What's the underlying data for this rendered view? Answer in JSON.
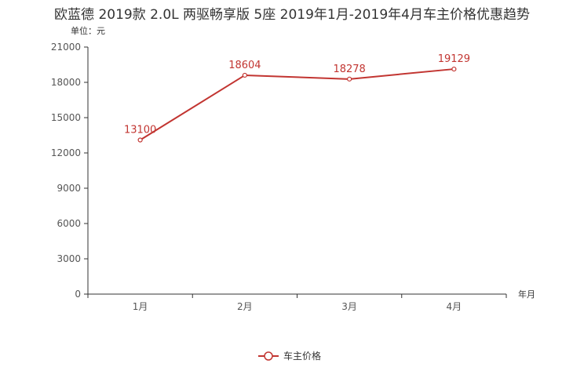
{
  "chart_data": {
    "type": "line",
    "title": "欧蓝德 2019款 2.0L 两驱畅享版 5座 2019年1月-2019年4月车主价格优惠趋势",
    "ylabel": "单位：元",
    "xlabel": "年月",
    "categories": [
      "1月",
      "2月",
      "3月",
      "4月"
    ],
    "ylim": [
      0,
      21000
    ],
    "yticks": [
      0,
      3000,
      6000,
      9000,
      12000,
      15000,
      18000,
      21000
    ],
    "series": [
      {
        "name": "车主价格",
        "values": [
          13100,
          18604,
          18278,
          19129
        ]
      }
    ],
    "legend_position": "bottom-center",
    "grid": false
  },
  "colors": {
    "series": "#c23531",
    "axis": "#333333",
    "text": "#555555"
  }
}
